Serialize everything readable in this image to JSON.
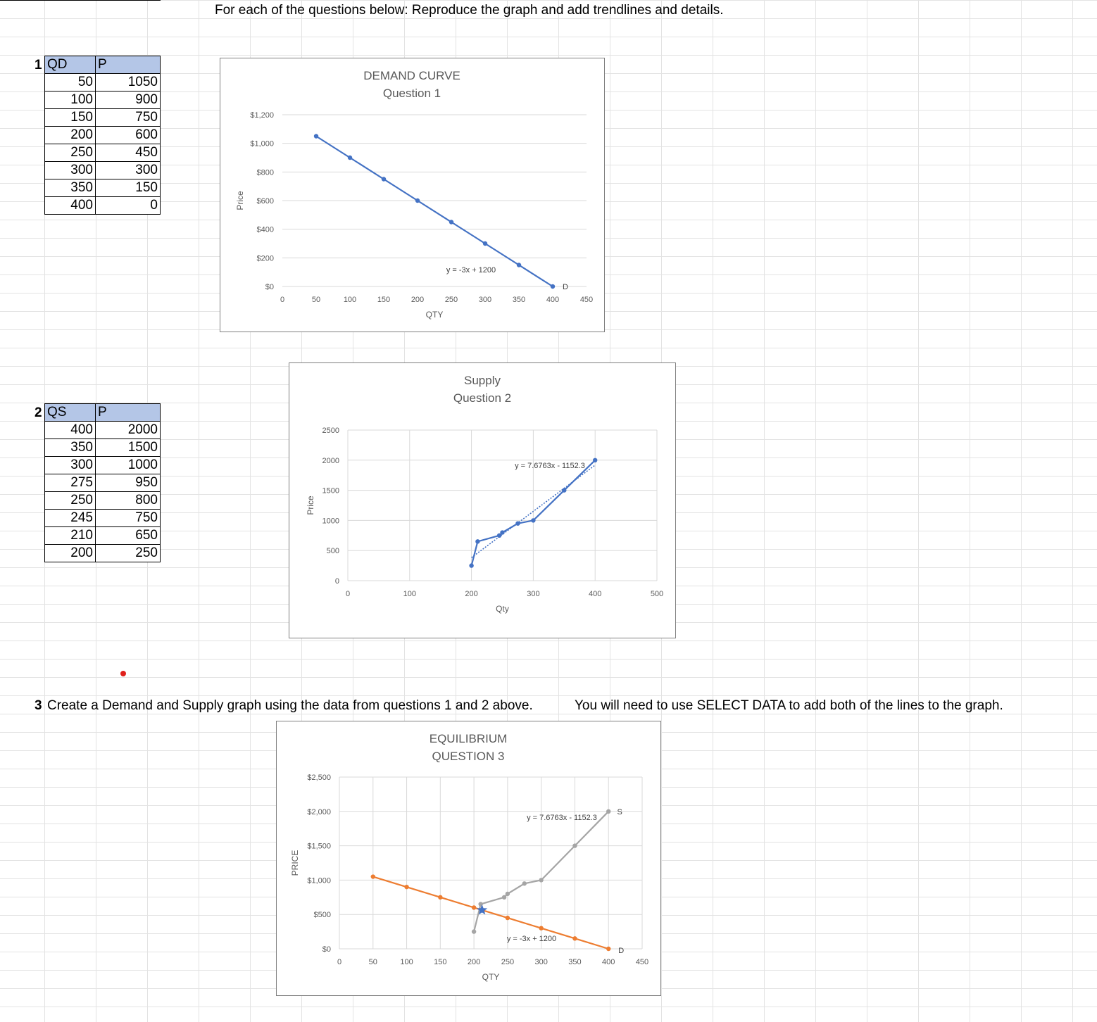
{
  "instructions": {
    "top": "For each of the questions below:   Reproduce the graph and add trendlines and details.",
    "q3_num": "3",
    "q3_text": "Create a Demand and Supply graph using the data from questions 1 and 2 above.",
    "q3_note": "You will need to use SELECT DATA to add both of the lines to the graph."
  },
  "table1": {
    "row_num": "1",
    "headers": [
      "QD",
      "P"
    ],
    "rows": [
      [
        "50",
        "1050"
      ],
      [
        "100",
        "900"
      ],
      [
        "150",
        "750"
      ],
      [
        "200",
        "600"
      ],
      [
        "250",
        "450"
      ],
      [
        "300",
        "300"
      ],
      [
        "350",
        "150"
      ],
      [
        "400",
        "0"
      ]
    ]
  },
  "table2": {
    "row_num": "2",
    "headers": [
      "QS",
      "P"
    ],
    "rows": [
      [
        "400",
        "2000"
      ],
      [
        "350",
        "1500"
      ],
      [
        "300",
        "1000"
      ],
      [
        "275",
        "950"
      ],
      [
        "250",
        "800"
      ],
      [
        "245",
        "750"
      ],
      [
        "210",
        "650"
      ],
      [
        "200",
        "250"
      ]
    ]
  },
  "chart_data": [
    {
      "type": "line",
      "title": "DEMAND CURVE",
      "subtitle": "Question 1",
      "xlabel": "QTY",
      "ylabel": "Price",
      "xlim": [
        0,
        450
      ],
      "ylim": [
        0,
        1200
      ],
      "x_ticks": [
        "0",
        "50",
        "100",
        "150",
        "200",
        "250",
        "300",
        "350",
        "400",
        "450"
      ],
      "y_ticks": [
        "$0",
        "$200",
        "$400",
        "$600",
        "$800",
        "$1,000",
        "$1,200"
      ],
      "grid": true,
      "series": [
        {
          "name": "D",
          "color": "#4472c4",
          "x": [
            50,
            100,
            150,
            200,
            250,
            300,
            350,
            400
          ],
          "y": [
            1050,
            900,
            750,
            600,
            450,
            300,
            150,
            0
          ]
        }
      ],
      "annotations": [
        "y = -3x + 1200",
        "D"
      ]
    },
    {
      "type": "scatter",
      "title": "Supply",
      "subtitle": "Question 2",
      "xlabel": "Qty",
      "ylabel": "Price",
      "xlim": [
        0,
        500
      ],
      "ylim": [
        0,
        2500
      ],
      "x_ticks": [
        "0",
        "100",
        "200",
        "300",
        "400",
        "500"
      ],
      "y_ticks": [
        "0",
        "500",
        "1000",
        "1500",
        "2000",
        "2500"
      ],
      "grid": true,
      "series": [
        {
          "color": "#4472c4",
          "x": [
            200,
            210,
            245,
            250,
            275,
            300,
            350,
            400
          ],
          "y": [
            250,
            650,
            750,
            800,
            950,
            1000,
            1500,
            2000
          ]
        }
      ],
      "trendline": {
        "type": "linear",
        "style": "dotted"
      },
      "annotations": [
        "y = 7.6763x - 1152.3"
      ]
    },
    {
      "type": "line",
      "title": "EQUILIBRIUM",
      "subtitle": "QUESTION 3",
      "xlabel": "QTY",
      "ylabel": "PRICE",
      "xlim": [
        0,
        450
      ],
      "ylim": [
        0,
        2500
      ],
      "x_ticks": [
        "0",
        "50",
        "100",
        "150",
        "200",
        "250",
        "300",
        "350",
        "400",
        "450"
      ],
      "y_ticks": [
        "$0",
        "$500",
        "$1,000",
        "$1,500",
        "$2,000",
        "$2,500"
      ],
      "grid": true,
      "series": [
        {
          "name": "D",
          "color": "#ed7d31",
          "x": [
            50,
            100,
            150,
            200,
            250,
            300,
            350,
            400
          ],
          "y": [
            1050,
            900,
            750,
            600,
            450,
            300,
            150,
            0
          ]
        },
        {
          "name": "S",
          "color": "#a5a5a5",
          "x": [
            200,
            210,
            245,
            250,
            275,
            300,
            350,
            400
          ],
          "y": [
            250,
            650,
            750,
            800,
            950,
            1000,
            1500,
            2000
          ]
        }
      ],
      "equilibrium": {
        "x": 212,
        "y": 564,
        "marker": "star",
        "color": "#4472c4"
      },
      "annotations": [
        "y = 7.6763x - 1152.3",
        "y = -3x + 1200",
        "S",
        "D"
      ]
    }
  ]
}
